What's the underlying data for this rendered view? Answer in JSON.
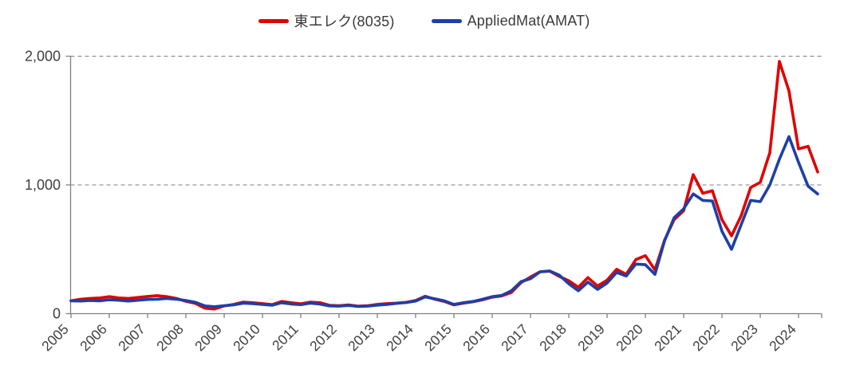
{
  "chart_data": {
    "type": "line",
    "title": "",
    "xlabel": "",
    "ylabel": "",
    "legend_position": "top-center",
    "style": {
      "grid_color": "#7f7f7f",
      "axis_color": "#808080",
      "label_color": "#404040",
      "gridline_style": "dashed",
      "background": "#ffffff"
    },
    "x_axis": {
      "tick_labels": [
        "2005",
        "2006",
        "2007",
        "2008",
        "2009",
        "2010",
        "2011",
        "2012",
        "2013",
        "2014",
        "2015",
        "2016",
        "2017",
        "2018",
        "2019",
        "2020",
        "2021",
        "2022",
        "2023",
        "2024"
      ],
      "tick_label_rotation_deg": -45,
      "range_years": [
        2005,
        2024.6
      ]
    },
    "y_axis": {
      "tick_values": [
        0,
        1000,
        2000
      ],
      "tick_labels": [
        "0",
        "1,000",
        "2,000"
      ],
      "range": [
        0,
        2000
      ]
    },
    "x": [
      2005,
      2005.25,
      2005.5,
      2005.75,
      2006,
      2006.25,
      2006.5,
      2006.75,
      2007,
      2007.25,
      2007.5,
      2007.75,
      2008,
      2008.25,
      2008.5,
      2008.75,
      2009,
      2009.25,
      2009.5,
      2009.75,
      2010,
      2010.25,
      2010.5,
      2010.75,
      2011,
      2011.25,
      2011.5,
      2011.75,
      2012,
      2012.25,
      2012.5,
      2012.75,
      2013,
      2013.25,
      2013.5,
      2013.75,
      2014,
      2014.25,
      2014.5,
      2014.75,
      2015,
      2015.25,
      2015.5,
      2015.75,
      2016,
      2016.25,
      2016.5,
      2016.75,
      2017,
      2017.25,
      2017.5,
      2017.75,
      2018,
      2018.25,
      2018.5,
      2018.75,
      2019,
      2019.25,
      2019.5,
      2019.75,
      2020,
      2020.25,
      2020.5,
      2020.75,
      2021,
      2021.25,
      2021.5,
      2021.75,
      2022,
      2022.25,
      2022.5,
      2022.75,
      2023,
      2023.25,
      2023.5,
      2023.75,
      2024,
      2024.25,
      2024.5
    ],
    "series": [
      {
        "name": "東エレク(8035)",
        "color": "#e00000",
        "values": [
          100,
          112,
          118,
          122,
          132,
          122,
          118,
          126,
          134,
          140,
          132,
          118,
          96,
          80,
          42,
          36,
          60,
          72,
          90,
          85,
          78,
          70,
          95,
          85,
          76,
          90,
          85,
          65,
          62,
          68,
          58,
          62,
          72,
          78,
          82,
          88,
          102,
          135,
          112,
          95,
          68,
          82,
          92,
          108,
          128,
          138,
          165,
          240,
          285,
          325,
          330,
          290,
          255,
          205,
          280,
          215,
          260,
          345,
          305,
          420,
          450,
          340,
          570,
          730,
          800,
          1080,
          935,
          955,
          730,
          605,
          760,
          980,
          1020,
          1250,
          1960,
          1730,
          1280,
          1300,
          1100
        ]
      },
      {
        "name": "AppliedMat(AMAT)",
        "color": "#1e3fa6",
        "values": [
          100,
          98,
          102,
          100,
          108,
          104,
          98,
          104,
          110,
          112,
          118,
          112,
          102,
          88,
          60,
          54,
          62,
          68,
          82,
          78,
          72,
          65,
          85,
          75,
          70,
          82,
          74,
          60,
          58,
          64,
          56,
          58,
          66,
          72,
          80,
          86,
          98,
          130,
          115,
          100,
          72,
          85,
          95,
          112,
          132,
          142,
          178,
          248,
          272,
          325,
          332,
          300,
          232,
          178,
          245,
          188,
          238,
          320,
          292,
          385,
          380,
          305,
          565,
          745,
          815,
          930,
          880,
          875,
          640,
          500,
          690,
          880,
          870,
          1000,
          1200,
          1375,
          1175,
          990,
          930
        ]
      }
    ]
  }
}
